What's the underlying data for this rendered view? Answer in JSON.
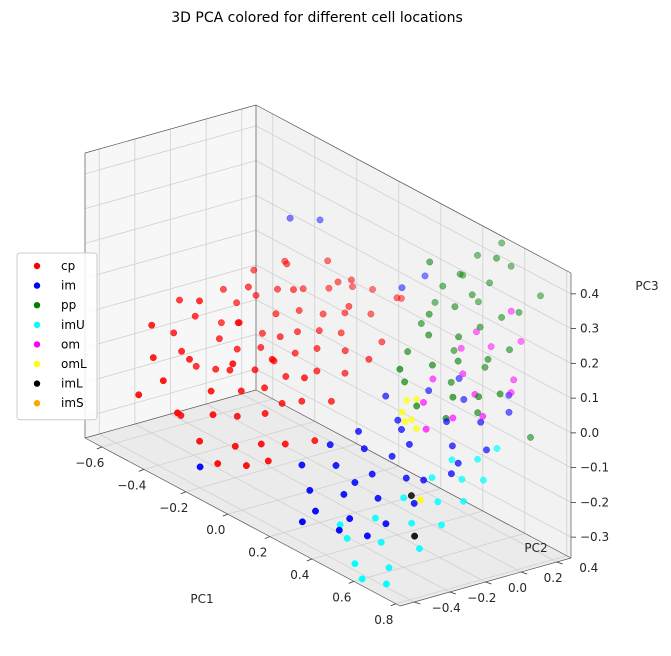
{
  "chart_data": {
    "type": "scatter",
    "projection": "3d",
    "title": "3D PCA colored for different cell locations",
    "xlabel": "PC1",
    "ylabel": "PC2",
    "zlabel": "PC3",
    "xlim": [
      -0.68,
      0.82
    ],
    "ylim": [
      -0.48,
      0.48
    ],
    "zlim": [
      -0.36,
      0.46
    ],
    "xticks": [
      "−0.6",
      "−0.4",
      "−0.2",
      "0.0",
      "0.2",
      "0.4",
      "0.6",
      "0.8"
    ],
    "yticks": [
      "−0.4",
      "−0.2",
      "0.0",
      "0.2",
      "0.4"
    ],
    "zticks": [
      "−0.3",
      "−0.2",
      "−0.1",
      "0.0",
      "0.1",
      "0.2",
      "0.3",
      "0.4"
    ],
    "grid": true,
    "legend_position": "center-left",
    "series": [
      {
        "name": "cp",
        "color": "#ff0000",
        "points": [
          [
            -0.6,
            -0.2,
            -0.05
          ],
          [
            -0.58,
            -0.1,
            -0.08
          ],
          [
            -0.55,
            -0.25,
            -0.12
          ],
          [
            -0.52,
            -0.05,
            -0.02
          ],
          [
            -0.5,
            -0.15,
            -0.1
          ],
          [
            -0.48,
            0.05,
            -0.04
          ],
          [
            -0.46,
            -0.3,
            -0.15
          ],
          [
            -0.45,
            0.1,
            0.02
          ],
          [
            -0.43,
            -0.02,
            -0.06
          ],
          [
            -0.42,
            -0.2,
            -0.09
          ],
          [
            -0.4,
            0.15,
            0.05
          ],
          [
            -0.38,
            -0.1,
            -0.12
          ],
          [
            -0.37,
            0.02,
            0.0
          ],
          [
            -0.35,
            -0.35,
            -0.2
          ],
          [
            -0.34,
            0.2,
            0.08
          ],
          [
            -0.32,
            -0.05,
            -0.05
          ],
          [
            -0.31,
            0.08,
            -0.02
          ],
          [
            -0.3,
            -0.22,
            -0.14
          ],
          [
            -0.28,
            0.12,
            0.04
          ],
          [
            -0.27,
            -0.15,
            -0.08
          ],
          [
            -0.26,
            0.25,
            0.1
          ],
          [
            -0.25,
            0.0,
            -0.03
          ],
          [
            -0.24,
            -0.28,
            -0.18
          ],
          [
            -0.22,
            0.18,
            0.06
          ],
          [
            -0.21,
            -0.08,
            -0.07
          ],
          [
            -0.2,
            0.05,
            0.01
          ],
          [
            -0.19,
            -0.18,
            -0.11
          ],
          [
            -0.18,
            0.3,
            0.12
          ],
          [
            -0.17,
            -0.02,
            -0.04
          ],
          [
            -0.16,
            0.1,
            0.03
          ],
          [
            -0.15,
            -0.25,
            -0.16
          ],
          [
            -0.14,
            0.22,
            0.07
          ],
          [
            -0.13,
            -0.12,
            -0.09
          ],
          [
            -0.12,
            0.04,
            -0.01
          ],
          [
            -0.11,
            0.35,
            0.14
          ],
          [
            -0.1,
            -0.32,
            -0.22
          ],
          [
            -0.09,
            0.14,
            0.05
          ],
          [
            -0.08,
            -0.06,
            -0.05
          ],
          [
            -0.07,
            0.26,
            0.09
          ],
          [
            -0.06,
            -0.2,
            -0.13
          ],
          [
            -0.05,
            0.08,
            0.02
          ],
          [
            -0.04,
            0.38,
            0.15
          ],
          [
            -0.03,
            -0.14,
            -0.1
          ],
          [
            -0.02,
            0.18,
            0.06
          ],
          [
            -0.01,
            -0.28,
            -0.19
          ],
          [
            0.0,
            0.02,
            -0.02
          ],
          [
            0.02,
            0.3,
            0.11
          ],
          [
            0.03,
            -0.1,
            -0.08
          ],
          [
            0.05,
            0.12,
            0.04
          ],
          [
            0.07,
            -0.24,
            -0.17
          ],
          [
            0.08,
            0.4,
            0.16
          ],
          [
            0.1,
            0.06,
            0.0
          ],
          [
            0.12,
            -0.04,
            -0.06
          ],
          [
            0.14,
            0.22,
            0.08
          ],
          [
            0.16,
            -0.18,
            -0.14
          ],
          [
            -0.44,
            -0.12,
            0.06
          ],
          [
            -0.36,
            0.06,
            0.1
          ],
          [
            -0.29,
            -0.08,
            0.04
          ],
          [
            -0.23,
            0.16,
            0.12
          ],
          [
            -0.18,
            -0.24,
            -0.02
          ],
          [
            -0.12,
            0.28,
            0.16
          ],
          [
            -0.06,
            -0.16,
            0.02
          ],
          [
            0.0,
            0.2,
            0.14
          ],
          [
            0.06,
            -0.12,
            0.0
          ],
          [
            -0.33,
            0.24,
            0.15
          ],
          [
            -0.41,
            -0.26,
            -0.24
          ],
          [
            -0.27,
            -0.32,
            -0.26
          ],
          [
            -0.15,
            -0.36,
            -0.28
          ],
          [
            -0.03,
            -0.34,
            -0.25
          ],
          [
            0.04,
            -0.3,
            -0.22
          ],
          [
            -0.53,
            0.12,
            0.03
          ],
          [
            -0.47,
            0.22,
            0.09
          ],
          [
            -0.39,
            0.3,
            0.13
          ],
          [
            -0.22,
            0.34,
            0.18
          ],
          [
            -0.09,
            0.32,
            0.17
          ],
          [
            0.11,
            0.34,
            0.18
          ],
          [
            0.18,
            0.1,
            0.06
          ],
          [
            -0.56,
            -0.32,
            -0.22
          ],
          [
            -0.62,
            -0.02,
            -0.01
          ],
          [
            -0.49,
            -0.08,
            -0.15
          ]
        ]
      },
      {
        "name": "im",
        "color": "#0000ff",
        "points": [
          [
            0.2,
            -0.3,
            -0.18
          ],
          [
            0.25,
            -0.2,
            -0.12
          ],
          [
            0.28,
            -0.35,
            -0.22
          ],
          [
            0.3,
            -0.1,
            -0.08
          ],
          [
            0.32,
            -0.25,
            -0.15
          ],
          [
            0.35,
            -0.4,
            -0.25
          ],
          [
            0.37,
            -0.15,
            -0.1
          ],
          [
            0.4,
            -0.3,
            -0.2
          ],
          [
            0.42,
            0.0,
            -0.05
          ],
          [
            0.45,
            -0.2,
            -0.14
          ],
          [
            0.47,
            -0.35,
            -0.24
          ],
          [
            0.5,
            -0.05,
            -0.06
          ],
          [
            0.52,
            -0.25,
            -0.18
          ],
          [
            0.55,
            0.1,
            0.0
          ],
          [
            0.57,
            -0.15,
            -0.12
          ],
          [
            0.6,
            -0.3,
            -0.22
          ],
          [
            0.62,
            0.05,
            -0.04
          ],
          [
            0.65,
            -0.2,
            -0.16
          ],
          [
            0.67,
            0.15,
            0.03
          ],
          [
            0.7,
            -0.05,
            -0.08
          ],
          [
            0.72,
            0.25,
            0.06
          ],
          [
            0.74,
            0.1,
            -0.02
          ],
          [
            0.38,
            0.2,
            0.02
          ],
          [
            0.44,
            0.3,
            0.06
          ],
          [
            0.33,
            -0.45,
            -0.28
          ],
          [
            0.48,
            -0.42,
            -0.26
          ],
          [
            0.58,
            -0.38,
            -0.25
          ],
          [
            0.26,
            0.1,
            -0.02
          ],
          [
            0.53,
            0.22,
            0.04
          ],
          [
            0.66,
            0.32,
            0.08
          ],
          [
            -0.45,
            0.4,
            0.22
          ],
          [
            -0.35,
            0.45,
            0.24
          ],
          [
            0.15,
            0.45,
            0.24
          ],
          [
            -0.2,
            -0.4,
            -0.3
          ],
          [
            0.1,
            0.38,
            0.2
          ],
          [
            0.36,
            0.05,
            -0.05
          ],
          [
            0.46,
            -0.1,
            -0.1
          ],
          [
            0.61,
            -0.1,
            -0.12
          ],
          [
            0.69,
            0.0,
            -0.06
          ],
          [
            0.41,
            -0.25,
            -0.17
          ]
        ]
      },
      {
        "name": "pp",
        "color": "#008000",
        "points": [
          [
            0.3,
            0.3,
            0.35
          ],
          [
            0.32,
            0.35,
            0.28
          ],
          [
            0.34,
            0.25,
            0.22
          ],
          [
            0.36,
            0.4,
            0.32
          ],
          [
            0.38,
            0.2,
            0.18
          ],
          [
            0.4,
            0.45,
            0.38
          ],
          [
            0.42,
            0.3,
            0.26
          ],
          [
            0.44,
            0.15,
            0.12
          ],
          [
            0.46,
            0.35,
            0.3
          ],
          [
            0.48,
            0.25,
            0.2
          ],
          [
            0.5,
            0.4,
            0.34
          ],
          [
            0.52,
            0.2,
            0.15
          ],
          [
            0.54,
            0.3,
            0.24
          ],
          [
            0.56,
            0.45,
            0.4
          ],
          [
            0.58,
            0.1,
            0.08
          ],
          [
            0.6,
            0.35,
            0.28
          ],
          [
            0.62,
            0.25,
            0.18
          ],
          [
            0.64,
            0.4,
            0.3
          ],
          [
            0.66,
            0.15,
            0.1
          ],
          [
            0.68,
            0.3,
            0.22
          ],
          [
            0.28,
            0.2,
            0.1
          ],
          [
            0.26,
            0.3,
            0.16
          ],
          [
            0.35,
            0.1,
            0.05
          ],
          [
            0.45,
            0.05,
            0.02
          ],
          [
            0.55,
            0.38,
            0.43
          ],
          [
            0.7,
            0.45,
            0.36
          ],
          [
            0.49,
            0.48,
            0.44
          ],
          [
            0.24,
            0.4,
            0.2
          ],
          [
            0.58,
            0.28,
            0.14
          ],
          [
            0.39,
            0.33,
            0.12
          ],
          [
            0.47,
            0.22,
            0.07
          ],
          [
            0.63,
            0.18,
            0.04
          ],
          [
            0.53,
            0.12,
            0.0
          ],
          [
            0.43,
            0.42,
            0.26
          ],
          [
            0.33,
            0.45,
            0.3
          ],
          [
            0.78,
            0.3,
            0.0
          ],
          [
            0.72,
            0.2,
            0.12
          ],
          [
            0.37,
            0.05,
            0.1
          ]
        ]
      },
      {
        "name": "imU",
        "color": "#00ffff",
        "points": [
          [
            0.5,
            -0.4,
            -0.28
          ],
          [
            0.55,
            -0.3,
            -0.22
          ],
          [
            0.6,
            -0.2,
            -0.16
          ],
          [
            0.62,
            -0.35,
            -0.26
          ],
          [
            0.65,
            -0.1,
            -0.1
          ],
          [
            0.68,
            -0.25,
            -0.2
          ],
          [
            0.7,
            -0.4,
            -0.3
          ],
          [
            0.72,
            -0.15,
            -0.14
          ],
          [
            0.75,
            -0.05,
            -0.08
          ],
          [
            0.76,
            -0.3,
            -0.24
          ],
          [
            0.78,
            -0.2,
            -0.18
          ],
          [
            0.8,
            -0.1,
            -0.12
          ],
          [
            0.79,
            0.1,
            0.0
          ],
          [
            0.74,
            0.05,
            -0.04
          ],
          [
            0.66,
            0.0,
            -0.06
          ],
          [
            0.58,
            -0.45,
            -0.32
          ],
          [
            0.45,
            -0.38,
            -0.26
          ],
          [
            0.73,
            -0.45,
            -0.33
          ],
          [
            0.64,
            -0.48,
            -0.34
          ],
          [
            0.81,
            0.0,
            -0.07
          ]
        ]
      },
      {
        "name": "om",
        "color": "#ff00ff",
        "points": [
          [
            0.45,
            0.3,
            0.15
          ],
          [
            0.5,
            0.25,
            0.1
          ],
          [
            0.55,
            0.35,
            0.18
          ],
          [
            0.6,
            0.2,
            0.08
          ],
          [
            0.65,
            0.4,
            0.22
          ],
          [
            0.7,
            0.3,
            0.14
          ],
          [
            0.4,
            0.2,
            0.06
          ],
          [
            0.58,
            0.1,
            0.02
          ],
          [
            0.68,
            0.15,
            0.05
          ],
          [
            0.62,
            0.38,
            0.3
          ],
          [
            0.52,
            0.02,
            -0.02
          ],
          [
            0.44,
            0.1,
            0.02
          ],
          [
            0.73,
            0.25,
            0.12
          ],
          [
            0.48,
            0.35,
            0.2
          ]
        ]
      },
      {
        "name": "omL",
        "color": "#ffff00",
        "points": [
          [
            0.38,
            0.05,
            -0.02
          ],
          [
            0.4,
            0.08,
            -0.04
          ],
          [
            0.42,
            0.02,
            -0.03
          ],
          [
            0.36,
            0.1,
            0.0
          ],
          [
            0.44,
            0.06,
            -0.05
          ],
          [
            0.39,
            0.12,
            0.01
          ],
          [
            0.68,
            -0.2,
            -0.14
          ]
        ]
      },
      {
        "name": "imL",
        "color": "#000000",
        "points": [
          [
            0.72,
            -0.28,
            -0.22
          ],
          [
            0.62,
            -0.18,
            -0.15
          ]
        ]
      },
      {
        "name": "imS",
        "color": "#ffa500",
        "points": []
      }
    ]
  }
}
